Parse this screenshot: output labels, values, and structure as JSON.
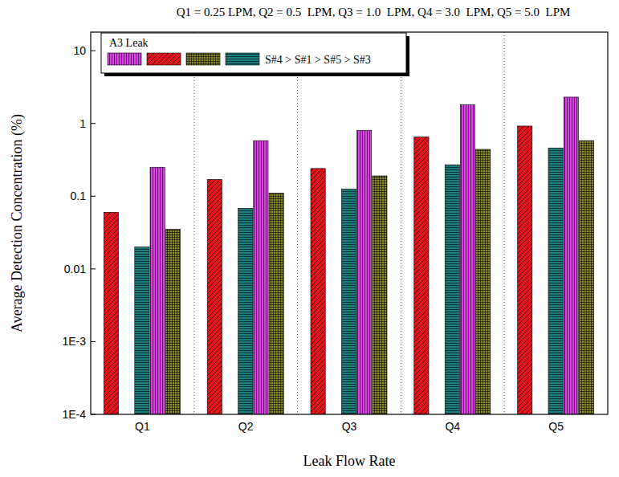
{
  "chart_data": {
    "type": "bar",
    "title": "Q1 = 0.25 LPM, Q2 = 0.5  LPM, Q3 = 1.0  LPM, Q4 = 3.0  LPM, Q5 = 5.0  LPM",
    "x_label": "Leak Flow Rate",
    "y_label": "Average Detection Concentration (%)",
    "annotations": [
      "A3 Leak",
      "S#4 > S#1 > S#5 > S#3"
    ],
    "categories": [
      "Q1",
      "Q2",
      "Q3",
      "Q4",
      "Q5"
    ],
    "series": [
      {
        "color": "#e8101a",
        "values": [
          0.06,
          0.17,
          0.24,
          0.65,
          0.92
        ]
      },
      {
        "values": [
          null,
          null,
          null,
          null,
          null
        ]
      },
      {
        "color": "#1e7e7e",
        "values": [
          0.02,
          0.068,
          0.125,
          0.27,
          0.46
        ]
      },
      {
        "color": "#e040e8",
        "values": [
          0.25,
          0.58,
          0.8,
          1.8,
          2.3
        ]
      },
      {
        "color": "#8a8a2a",
        "values": [
          0.035,
          0.11,
          0.19,
          0.44,
          0.58
        ]
      }
    ],
    "ylim": [
      0.0001,
      18
    ],
    "yticks": [
      {
        "value": 0.0001,
        "label": "1E-4"
      },
      {
        "value": 0.001,
        "label": "1E-3"
      },
      0.01,
      0.1,
      1,
      10
    ],
    "log": "y",
    "grid": false,
    "legend": "top-left"
  }
}
